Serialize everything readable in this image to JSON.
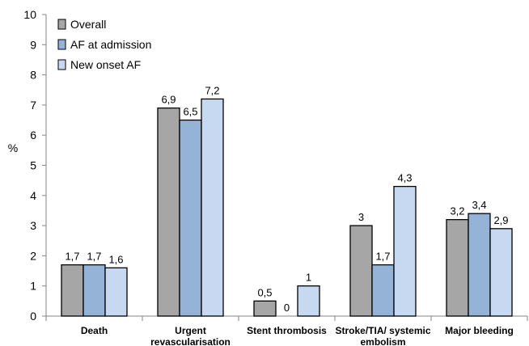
{
  "chart_data": {
    "type": "bar",
    "ylabel": "%",
    "ylim": [
      0,
      10
    ],
    "yticks": [
      "0",
      "1",
      "2",
      "3",
      "4",
      "5",
      "6",
      "7",
      "8",
      "9",
      "10"
    ],
    "legend_position": "top-left",
    "grid": false,
    "categories": [
      [
        "Death"
      ],
      [
        "Urgent",
        "revascularisation"
      ],
      [
        "Stent thrombosis"
      ],
      [
        "Stroke/TIA/ systemic",
        "embolism"
      ],
      [
        "Major bleeding"
      ]
    ],
    "series": [
      {
        "name": "Overall",
        "color": "#a6a6a6",
        "values": [
          1.7,
          6.9,
          0.5,
          3,
          3.2
        ],
        "labels": [
          "1,7",
          "6,9",
          "0,5",
          "3",
          "3,2"
        ]
      },
      {
        "name": "AF at admission",
        "color": "#95b3d7",
        "values": [
          1.7,
          6.5,
          0,
          1.7,
          3.4
        ],
        "labels": [
          "1,7",
          "6,5",
          "0",
          "1,7",
          "3,4"
        ]
      },
      {
        "name": "New onset AF",
        "color": "#c6d9f1",
        "values": [
          1.6,
          7.2,
          1,
          4.3,
          2.9
        ],
        "labels": [
          "1,6",
          "7,2",
          "1",
          "4,3",
          "2,9"
        ]
      }
    ]
  }
}
